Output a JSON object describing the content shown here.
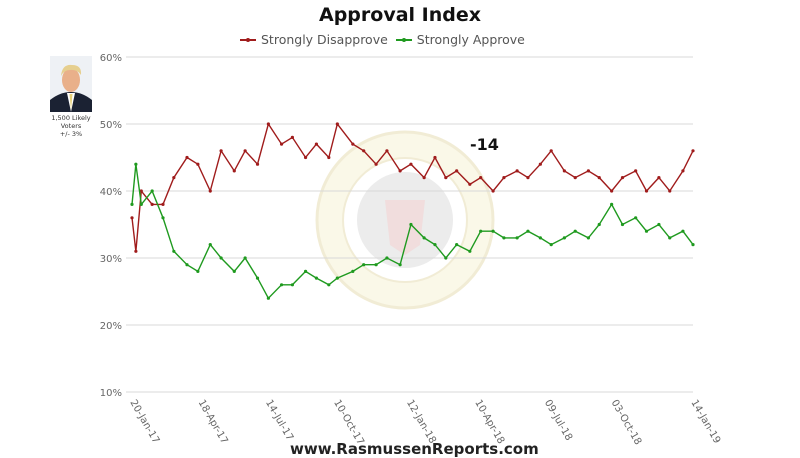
{
  "photo_caption": [
    "1,500 Likely",
    "Voters",
    "+/- 3%"
  ],
  "footer": "www.RasmussenReports.com",
  "chart_data": {
    "type": "line",
    "title": "Approval Index",
    "ylim": [
      10,
      60
    ],
    "yticks": [
      "10%",
      "20%",
      "30%",
      "40%",
      "50%",
      "60%"
    ],
    "xlim": [
      "2017-01-20",
      "2019-01-14"
    ],
    "xticks": [
      {
        "date": "2017-01-20",
        "label": "20-Jan-17"
      },
      {
        "date": "2017-04-18",
        "label": "18-Apr-17"
      },
      {
        "date": "2017-07-14",
        "label": "14-Jul-17"
      },
      {
        "date": "2017-10-10",
        "label": "10-Oct-17"
      },
      {
        "date": "2018-01-12",
        "label": "12-Jan-18"
      },
      {
        "date": "2018-04-10",
        "label": "10-Apr-18"
      },
      {
        "date": "2018-07-09",
        "label": "09-Jul-18"
      },
      {
        "date": "2018-10-03",
        "label": "03-Oct-18"
      },
      {
        "date": "2019-01-14",
        "label": "14-Jan-19"
      }
    ],
    "grid": true,
    "legend_position": "top",
    "annotation": "-14",
    "x": [
      "2017-01-20",
      "2017-01-25",
      "2017-02-01",
      "2017-02-15",
      "2017-03-01",
      "2017-03-15",
      "2017-04-01",
      "2017-04-15",
      "2017-05-01",
      "2017-05-15",
      "2017-06-01",
      "2017-06-15",
      "2017-07-01",
      "2017-07-15",
      "2017-08-01",
      "2017-08-15",
      "2017-09-01",
      "2017-09-15",
      "2017-10-01",
      "2017-10-12",
      "2017-11-01",
      "2017-11-15",
      "2017-12-01",
      "2017-12-15",
      "2018-01-01",
      "2018-01-15",
      "2018-02-01",
      "2018-02-15",
      "2018-03-01",
      "2018-03-15",
      "2018-04-01",
      "2018-04-15",
      "2018-05-01",
      "2018-05-15",
      "2018-06-01",
      "2018-06-15",
      "2018-07-01",
      "2018-07-15",
      "2018-08-01",
      "2018-08-15",
      "2018-09-01",
      "2018-09-15",
      "2018-10-01",
      "2018-10-15",
      "2018-11-01",
      "2018-11-15",
      "2018-12-01",
      "2018-12-15",
      "2019-01-01",
      "2019-01-14"
    ],
    "series": [
      {
        "name": "Strongly Disapprove",
        "color": "#a01c1c",
        "values": [
          36,
          31,
          40,
          38,
          38,
          42,
          45,
          44,
          40,
          46,
          43,
          46,
          44,
          50,
          47,
          48,
          45,
          47,
          45,
          50,
          47,
          46,
          44,
          46,
          43,
          44,
          42,
          45,
          42,
          43,
          41,
          42,
          40,
          42,
          43,
          42,
          44,
          46,
          43,
          42,
          43,
          42,
          40,
          42,
          43,
          40,
          42,
          40,
          43,
          46
        ]
      },
      {
        "name": "Strongly Approve",
        "color": "#1f9a1f",
        "values": [
          38,
          44,
          38,
          40,
          36,
          31,
          29,
          28,
          32,
          30,
          28,
          30,
          27,
          24,
          26,
          26,
          28,
          27,
          26,
          27,
          28,
          29,
          29,
          30,
          29,
          35,
          33,
          32,
          30,
          32,
          31,
          34,
          34,
          33,
          33,
          34,
          33,
          32,
          33,
          34,
          33,
          35,
          38,
          35,
          36,
          34,
          35,
          33,
          34,
          32
        ]
      }
    ]
  }
}
